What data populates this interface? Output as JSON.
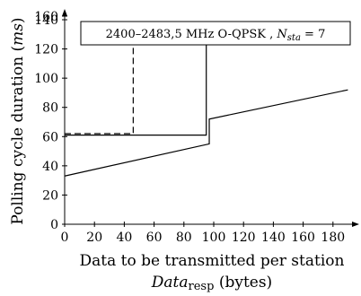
{
  "chart_data": {
    "type": "line",
    "xlabel": "Data to be transmitted per station",
    "xlabel_line2_prefix": "Data",
    "xlabel_line2_sub": "resp",
    "xlabel_line2_suffix": " (bytes)",
    "ylabel": "Polling cycle duration (",
    "ylabel_unit": "ms",
    "ylabel_close": ")",
    "xlim": [
      0,
      190
    ],
    "ylim": [
      0,
      160
    ],
    "xticks": [
      0,
      20,
      40,
      60,
      80,
      100,
      120,
      140,
      160,
      180
    ],
    "yticks": [
      0,
      20,
      40,
      60,
      80,
      100,
      120,
      140,
      160
    ],
    "annotation": {
      "text": "2400–2483,5 MHz O-QPSK , ",
      "var": "N",
      "var_sub": "sta",
      "eq": " = 7",
      "placement": "top-right"
    },
    "series": [
      {
        "style": "solid",
        "x": [
          0,
          95,
          95,
          190
        ],
        "y": [
          61,
          61,
          123,
          123
        ]
      },
      {
        "style": "dashed",
        "x": [
          0,
          46,
          46,
          190
        ],
        "y": [
          62,
          62,
          123,
          123
        ]
      },
      {
        "style": "solid",
        "x": [
          0,
          97,
          97,
          190
        ],
        "y": [
          33,
          55,
          72,
          92
        ]
      }
    ]
  }
}
